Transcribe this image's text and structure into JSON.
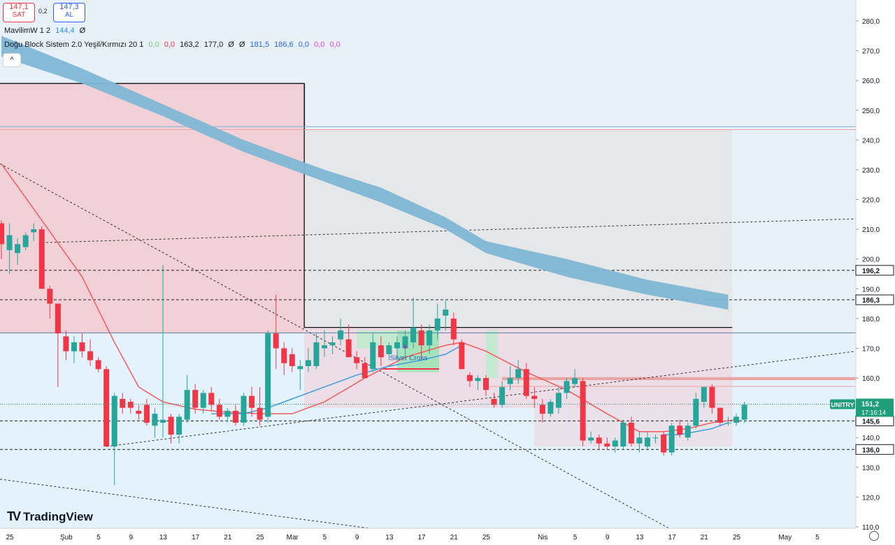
{
  "toolbar": {
    "sell_value": "147,1",
    "sell_label": "SAT",
    "spread": "0,2",
    "buy_value": "147,3",
    "buy_label": "AL"
  },
  "indicators": {
    "ind1_name": "MavilimW 1 2",
    "ind1_value": "144,4",
    "ind1_extra": "Ø",
    "ind2_name": "Doğu Block Sistem 2.0 Yeşil/Kırmızı 20 1",
    "ind2_values": [
      {
        "text": "0,0",
        "color": "#81c784"
      },
      {
        "text": "0,0",
        "color": "#f23645"
      },
      {
        "text": "163,2",
        "color": "#131722"
      },
      {
        "text": "177,0",
        "color": "#131722"
      },
      {
        "text": "Ø",
        "color": "#131722"
      },
      {
        "text": "Ø",
        "color": "#131722"
      },
      {
        "text": "181,5",
        "color": "#2962ff"
      },
      {
        "text": "186,6",
        "color": "#2962ff"
      },
      {
        "text": "0,0",
        "color": "#2962ff"
      },
      {
        "text": "0,0",
        "color": "#e040fb"
      },
      {
        "text": "0,0",
        "color": "#e040fb"
      }
    ]
  },
  "collapse_icon": "^",
  "brand": "TradingView",
  "icons": [
    "tradingview-logo-icon",
    "settings-icon",
    "collapse-icon"
  ],
  "chart_data": {
    "type": "candlestick",
    "symbol": "UNITRY",
    "last_price": "151,2",
    "countdown": "17:16:14",
    "ylim": [
      110,
      285
    ],
    "y_ticks": [
      110,
      120,
      130,
      140,
      150,
      160,
      170,
      180,
      190,
      200,
      210,
      220,
      230,
      240,
      250,
      260,
      270,
      280
    ],
    "y_tick_labels": [
      "110,0",
      "120,0",
      "130,0",
      "140,0",
      "150,0",
      "160,0",
      "170,0",
      "180,0",
      "190,0",
      "200,0",
      "210,0",
      "220,0",
      "230,0",
      "240,0",
      "250,0",
      "260,0",
      "270,0",
      "280,0"
    ],
    "x_ticks": [
      {
        "label": "25",
        "day": 0
      },
      {
        "label": "Şub",
        "day": 7
      },
      {
        "label": "5",
        "day": 11
      },
      {
        "label": "9",
        "day": 15
      },
      {
        "label": "13",
        "day": 19
      },
      {
        "label": "17",
        "day": 23
      },
      {
        "label": "21",
        "day": 27
      },
      {
        "label": "25",
        "day": 31
      },
      {
        "label": "Mar",
        "day": 35
      },
      {
        "label": "5",
        "day": 39
      },
      {
        "label": "9",
        "day": 43
      },
      {
        "label": "13",
        "day": 47
      },
      {
        "label": "17",
        "day": 51
      },
      {
        "label": "21",
        "day": 55
      },
      {
        "label": "25",
        "day": 59
      },
      {
        "label": "Nis",
        "day": 66
      },
      {
        "label": "5",
        "day": 70
      },
      {
        "label": "9",
        "day": 74
      },
      {
        "label": "13",
        "day": 78
      },
      {
        "label": "17",
        "day": 82
      },
      {
        "label": "21",
        "day": 86
      },
      {
        "label": "25",
        "day": 90
      },
      {
        "label": "May",
        "day": 96
      },
      {
        "label": "5",
        "day": 100
      }
    ],
    "price_labels": [
      {
        "value": 196.2,
        "text": "196,2"
      },
      {
        "value": 186.3,
        "text": "186,3"
      },
      {
        "value": 145.6,
        "text": "145,6"
      },
      {
        "value": 136.0,
        "text": "136,0"
      }
    ],
    "horizontal_levels": [
      196.2,
      186.3,
      145.6,
      136.0
    ],
    "annotation": "Silver Cross",
    "candles": [
      {
        "d": 0,
        "o": 212,
        "h": 213,
        "l": 200,
        "c": 205
      },
      {
        "d": 1,
        "o": 203,
        "h": 212,
        "l": 195,
        "c": 208
      },
      {
        "d": 2,
        "o": 202,
        "h": 207,
        "l": 198,
        "c": 205
      },
      {
        "d": 3,
        "o": 204,
        "h": 209,
        "l": 203,
        "c": 208
      },
      {
        "d": 4,
        "o": 209,
        "h": 212,
        "l": 206,
        "c": 210
      },
      {
        "d": 5,
        "o": 210,
        "h": 211,
        "l": 190,
        "c": 190
      },
      {
        "d": 6,
        "o": 190,
        "h": 191,
        "l": 180,
        "c": 185
      },
      {
        "d": 7,
        "o": 185,
        "h": 185,
        "l": 157,
        "c": 175
      },
      {
        "d": 8,
        "o": 174,
        "h": 176,
        "l": 166,
        "c": 169
      },
      {
        "d": 9,
        "o": 169,
        "h": 174,
        "l": 165,
        "c": 172
      },
      {
        "d": 10,
        "o": 172,
        "h": 175,
        "l": 167,
        "c": 169
      },
      {
        "d": 11,
        "o": 169,
        "h": 173,
        "l": 164,
        "c": 166
      },
      {
        "d": 12,
        "o": 166,
        "h": 167,
        "l": 162,
        "c": 163
      },
      {
        "d": 13,
        "o": 163,
        "h": 164,
        "l": 137,
        "c": 137
      },
      {
        "d": 14,
        "o": 137,
        "h": 155,
        "l": 124,
        "c": 154
      },
      {
        "d": 15,
        "o": 153,
        "h": 155,
        "l": 148,
        "c": 150
      },
      {
        "d": 16,
        "o": 152,
        "h": 153,
        "l": 148,
        "c": 150
      },
      {
        "d": 17,
        "o": 149,
        "h": 151,
        "l": 146,
        "c": 148
      },
      {
        "d": 18,
        "o": 151,
        "h": 153,
        "l": 144,
        "c": 145
      },
      {
        "d": 19,
        "o": 144,
        "h": 150,
        "l": 140,
        "c": 148
      },
      {
        "d": 20,
        "o": 145,
        "h": 198,
        "l": 140,
        "c": 146
      },
      {
        "d": 21,
        "o": 147,
        "h": 148,
        "l": 138,
        "c": 141
      },
      {
        "d": 22,
        "o": 141,
        "h": 148,
        "l": 138,
        "c": 147
      },
      {
        "d": 23,
        "o": 146,
        "h": 161,
        "l": 145,
        "c": 156
      },
      {
        "d": 24,
        "o": 156,
        "h": 158,
        "l": 148,
        "c": 150
      },
      {
        "d": 25,
        "o": 150,
        "h": 156,
        "l": 148,
        "c": 155
      },
      {
        "d": 26,
        "o": 155,
        "h": 157,
        "l": 149,
        "c": 151
      },
      {
        "d": 27,
        "o": 151,
        "h": 153,
        "l": 146,
        "c": 147
      },
      {
        "d": 28,
        "o": 147,
        "h": 150,
        "l": 145,
        "c": 149
      },
      {
        "d": 29,
        "o": 149,
        "h": 151,
        "l": 144,
        "c": 145
      },
      {
        "d": 30,
        "o": 145,
        "h": 155,
        "l": 144,
        "c": 154
      },
      {
        "d": 31,
        "o": 154,
        "h": 157,
        "l": 147,
        "c": 150
      },
      {
        "d": 32,
        "o": 150,
        "h": 157,
        "l": 144,
        "c": 146
      },
      {
        "d": 33,
        "o": 147,
        "h": 176,
        "l": 145,
        "c": 175
      },
      {
        "d": 34,
        "o": 175,
        "h": 188,
        "l": 163,
        "c": 170
      },
      {
        "d": 35,
        "o": 170,
        "h": 172,
        "l": 161,
        "c": 165
      },
      {
        "d": 36,
        "o": 168,
        "h": 170,
        "l": 162,
        "c": 164
      },
      {
        "d": 37,
        "o": 163,
        "h": 166,
        "l": 156,
        "c": 164
      },
      {
        "d": 38,
        "o": 164,
        "h": 170,
        "l": 162,
        "c": 166
      },
      {
        "d": 39,
        "o": 164,
        "h": 175,
        "l": 163,
        "c": 172
      },
      {
        "d": 40,
        "o": 170,
        "h": 176,
        "l": 167,
        "c": 171
      },
      {
        "d": 41,
        "o": 171,
        "h": 174,
        "l": 168,
        "c": 172
      },
      {
        "d": 42,
        "o": 173,
        "h": 180,
        "l": 171,
        "c": 176
      },
      {
        "d": 43,
        "o": 173,
        "h": 178,
        "l": 168,
        "c": 167
      },
      {
        "d": 44,
        "o": 167,
        "h": 169,
        "l": 163,
        "c": 165
      },
      {
        "d": 45,
        "o": 165,
        "h": 167,
        "l": 160,
        "c": 160
      },
      {
        "d": 46,
        "o": 163,
        "h": 175,
        "l": 162,
        "c": 172
      },
      {
        "d": 47,
        "o": 171,
        "h": 174,
        "l": 164,
        "c": 167
      },
      {
        "d": 48,
        "o": 168,
        "h": 172,
        "l": 166,
        "c": 171
      },
      {
        "d": 49,
        "o": 170,
        "h": 174,
        "l": 166,
        "c": 172
      },
      {
        "d": 50,
        "o": 170,
        "h": 176,
        "l": 167,
        "c": 174
      },
      {
        "d": 51,
        "o": 172,
        "h": 187,
        "l": 170,
        "c": 177
      },
      {
        "d": 52,
        "o": 176,
        "h": 178,
        "l": 166,
        "c": 171
      },
      {
        "d": 53,
        "o": 171,
        "h": 178,
        "l": 168,
        "c": 176
      },
      {
        "d": 54,
        "o": 176,
        "h": 185,
        "l": 173,
        "c": 180
      },
      {
        "d": 55,
        "o": 181,
        "h": 186,
        "l": 176,
        "c": 183
      },
      {
        "d": 56,
        "o": 180,
        "h": 182,
        "l": 171,
        "c": 173
      },
      {
        "d": 57,
        "o": 172,
        "h": 173,
        "l": 163,
        "c": 163
      },
      {
        "d": 58,
        "o": 161,
        "h": 162,
        "l": 157,
        "c": 159
      },
      {
        "d": 59,
        "o": 159,
        "h": 161,
        "l": 156,
        "c": 160
      },
      {
        "d": 60,
        "o": 160,
        "h": 161,
        "l": 154,
        "c": 156
      },
      {
        "d": 61,
        "o": 153,
        "h": 155,
        "l": 150,
        "c": 151
      },
      {
        "d": 62,
        "o": 151,
        "h": 159,
        "l": 150,
        "c": 157
      },
      {
        "d": 63,
        "o": 158,
        "h": 164,
        "l": 156,
        "c": 160
      },
      {
        "d": 64,
        "o": 160,
        "h": 166,
        "l": 158,
        "c": 163
      },
      {
        "d": 65,
        "o": 163,
        "h": 165,
        "l": 153,
        "c": 154
      },
      {
        "d": 66,
        "o": 154,
        "h": 157,
        "l": 150,
        "c": 153
      },
      {
        "d": 67,
        "o": 151,
        "h": 153,
        "l": 145,
        "c": 148
      },
      {
        "d": 68,
        "o": 148,
        "h": 153,
        "l": 147,
        "c": 152
      },
      {
        "d": 69,
        "o": 150,
        "h": 157,
        "l": 148,
        "c": 155
      },
      {
        "d": 70,
        "o": 155,
        "h": 160,
        "l": 153,
        "c": 159
      },
      {
        "d": 71,
        "o": 158,
        "h": 163,
        "l": 157,
        "c": 160
      },
      {
        "d": 72,
        "o": 159,
        "h": 160,
        "l": 137,
        "c": 139
      },
      {
        "d": 73,
        "o": 139,
        "h": 142,
        "l": 138,
        "c": 140
      },
      {
        "d": 74,
        "o": 140,
        "h": 141,
        "l": 136,
        "c": 138
      },
      {
        "d": 75,
        "o": 138,
        "h": 140,
        "l": 136,
        "c": 137
      },
      {
        "d": 76,
        "o": 137,
        "h": 140,
        "l": 135,
        "c": 139
      },
      {
        "d": 77,
        "o": 137,
        "h": 146,
        "l": 136,
        "c": 145
      },
      {
        "d": 78,
        "o": 145,
        "h": 147,
        "l": 137,
        "c": 138
      },
      {
        "d": 79,
        "o": 138,
        "h": 142,
        "l": 135,
        "c": 140
      },
      {
        "d": 80,
        "o": 137,
        "h": 142,
        "l": 136,
        "c": 140
      },
      {
        "d": 81,
        "o": 140,
        "h": 141,
        "l": 138,
        "c": 140
      },
      {
        "d": 82,
        "o": 141,
        "h": 142,
        "l": 134,
        "c": 135
      },
      {
        "d": 83,
        "o": 135,
        "h": 145,
        "l": 134,
        "c": 144
      },
      {
        "d": 84,
        "o": 144,
        "h": 146,
        "l": 140,
        "c": 141
      },
      {
        "d": 85,
        "o": 140,
        "h": 145,
        "l": 139,
        "c": 144
      },
      {
        "d": 86,
        "o": 144,
        "h": 155,
        "l": 143,
        "c": 153
      },
      {
        "d": 87,
        "o": 152,
        "h": 157,
        "l": 150,
        "c": 157
      },
      {
        "d": 88,
        "o": 157,
        "h": 158,
        "l": 148,
        "c": 150
      },
      {
        "d": 89,
        "o": 150,
        "h": 150,
        "l": 144,
        "c": 145
      },
      {
        "d": 90,
        "o": 145,
        "h": 147,
        "l": 144,
        "c": 145
      },
      {
        "d": 91,
        "o": 145,
        "h": 148,
        "l": 144,
        "c": 147
      },
      {
        "d": 92,
        "o": 146,
        "h": 152,
        "l": 145,
        "c": 151
      }
    ]
  },
  "colors": {
    "up": "#26a69a",
    "down": "#f23645",
    "band": "#7fb7d6",
    "price_bg": "#e3f2fd",
    "red_ma": "#f55b5b",
    "blue_ma": "#3d9ee0",
    "last_price": "#1e9e7a"
  }
}
